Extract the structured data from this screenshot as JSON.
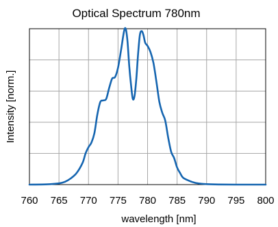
{
  "chart_data": {
    "type": "line",
    "title": "Optical Spectrum 780nm",
    "xlabel": "wavelength [nm]",
    "ylabel": "Intensity [norm.]",
    "xlim": [
      760,
      800
    ],
    "ylim": [
      0,
      1
    ],
    "xticks": [
      760,
      765,
      770,
      775,
      780,
      785,
      790,
      795,
      800
    ],
    "xtick_labels": [
      "760",
      "765",
      "770",
      "775",
      "780",
      "785",
      "790",
      "795",
      "800"
    ],
    "yticks": [
      0,
      0.2,
      0.4,
      0.6,
      0.8,
      1.0
    ],
    "ytick_labels_shown": false,
    "grid": true,
    "legend": "none",
    "series": [
      {
        "color": "#1565b0",
        "x": [
          760,
          763,
          765,
          766,
          767,
          768,
          769,
          769.5,
          770,
          770.5,
          771,
          771.5,
          772,
          772.5,
          773,
          773.5,
          774,
          774.5,
          775,
          775.5,
          776,
          776.3,
          776.6,
          776.9,
          777.2,
          777.5,
          777.8,
          778.1,
          778.4,
          778.7,
          779,
          779.3,
          779.6,
          780,
          780.5,
          781,
          781.5,
          782,
          782.5,
          783,
          783.5,
          784,
          784.5,
          785,
          785.5,
          786,
          787,
          788,
          789,
          790,
          792,
          795,
          800
        ],
        "y": [
          0,
          0.002,
          0.008,
          0.018,
          0.04,
          0.075,
          0.14,
          0.2,
          0.24,
          0.27,
          0.33,
          0.45,
          0.53,
          0.54,
          0.55,
          0.62,
          0.68,
          0.69,
          0.75,
          0.86,
          0.98,
          1.0,
          0.92,
          0.76,
          0.64,
          0.55,
          0.57,
          0.68,
          0.84,
          0.96,
          0.985,
          0.96,
          0.91,
          0.89,
          0.85,
          0.78,
          0.66,
          0.53,
          0.46,
          0.41,
          0.3,
          0.21,
          0.17,
          0.11,
          0.075,
          0.045,
          0.025,
          0.012,
          0.006,
          0.003,
          0.001,
          0.0,
          0.0
        ]
      }
    ]
  }
}
